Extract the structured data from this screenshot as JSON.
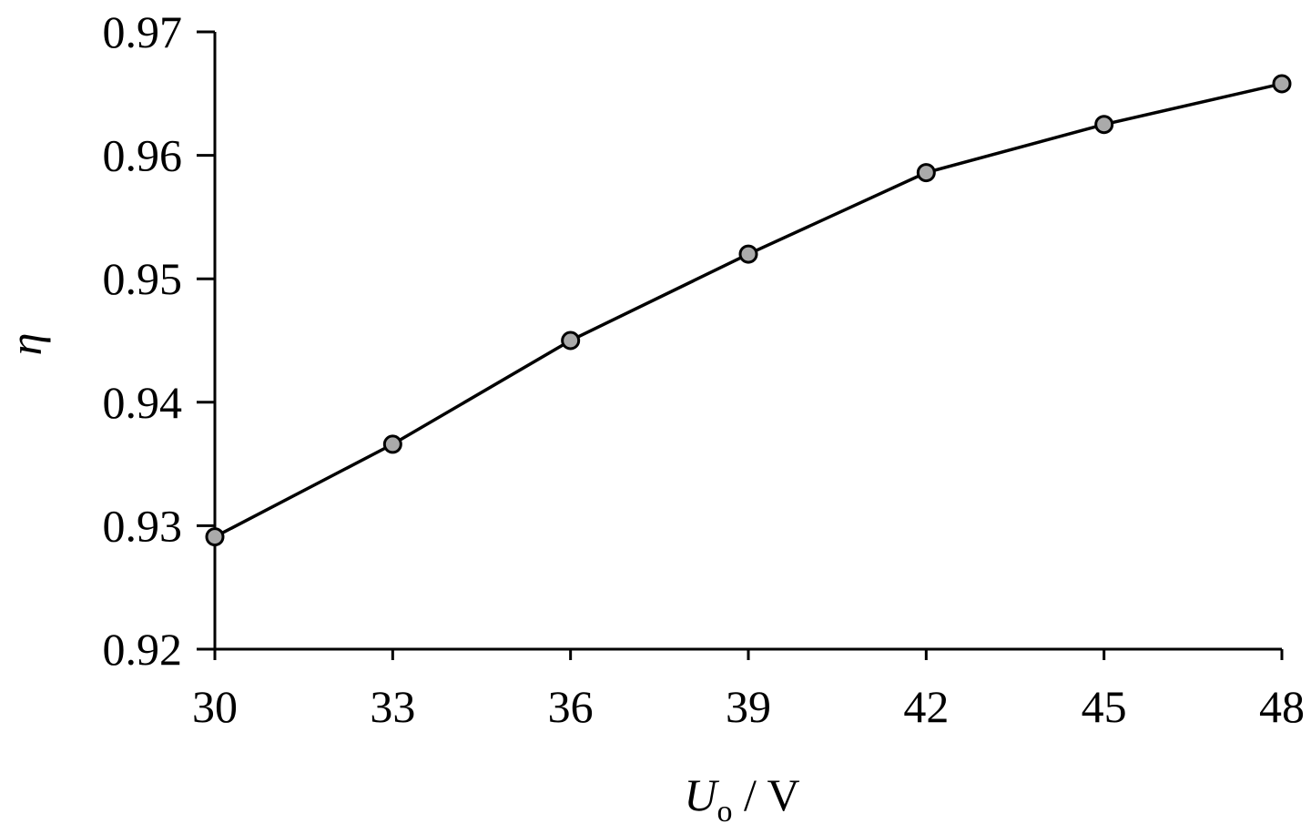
{
  "chart_data": {
    "type": "line",
    "x": [
      30,
      33,
      36,
      39,
      42,
      45,
      48
    ],
    "series": [
      {
        "color": "#000000",
        "marker_color": "#aaaaaa",
        "values": [
          0.9291,
          0.9366,
          0.945,
          0.952,
          0.9586,
          0.9625,
          0.9658
        ]
      }
    ],
    "xlim": [
      30,
      48
    ],
    "xticks": [
      30,
      33,
      36,
      39,
      42,
      45,
      48
    ],
    "ylim": [
      0.92,
      0.97
    ],
    "yticks": [
      0.92,
      0.93,
      0.94,
      0.95,
      0.96,
      0.97
    ],
    "xlabel": {
      "symbol": "U",
      "subscript": "o",
      "unit": " / V"
    },
    "ylabel": "η",
    "grid": false
  }
}
